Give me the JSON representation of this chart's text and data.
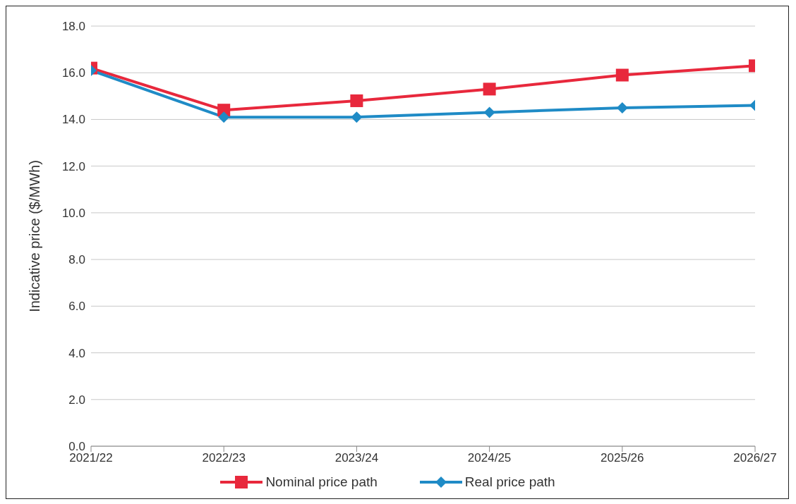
{
  "chart_data": {
    "type": "line",
    "ylabel": "Indicative price ($/MWh)",
    "categories": [
      "2021/22",
      "2022/23",
      "2023/24",
      "2024/25",
      "2025/26",
      "2026/27"
    ],
    "series": [
      {
        "name": "Nominal price path",
        "color": "#e8283c",
        "marker": "square",
        "values": [
          16.2,
          14.4,
          14.8,
          15.3,
          15.9,
          16.3
        ]
      },
      {
        "name": "Real price path",
        "color": "#1f8bc6",
        "marker": "diamond",
        "values": [
          16.1,
          14.1,
          14.1,
          14.3,
          14.5,
          14.6
        ]
      }
    ],
    "ylim": [
      0,
      18
    ],
    "yticks": [
      {
        "value": 0,
        "label": "0.0"
      },
      {
        "value": 2,
        "label": "2.0"
      },
      {
        "value": 4,
        "label": "4.0"
      },
      {
        "value": 6,
        "label": "6.0"
      },
      {
        "value": 8,
        "label": "8.0"
      },
      {
        "value": 10,
        "label": "10.0"
      },
      {
        "value": 12,
        "label": "12.0"
      },
      {
        "value": 14,
        "label": "14.0"
      },
      {
        "value": 16,
        "label": "16.0"
      },
      {
        "value": 18,
        "label": "18.0"
      }
    ],
    "grid": "y",
    "legend": "bottom",
    "line_style": "solid"
  }
}
